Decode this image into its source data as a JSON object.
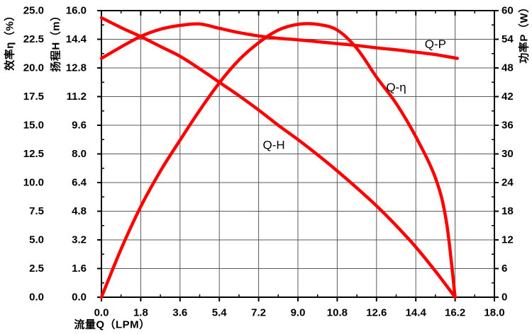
{
  "chart_data": {
    "type": "line",
    "title": "",
    "xlabel": "流量Q（LPM）",
    "x_axis": {
      "lim": [
        0,
        18
      ],
      "ticks": [
        "0.0",
        "1.8",
        "3.6",
        "5.4",
        "7.2",
        "9.0",
        "10.8",
        "12.6",
        "14.4",
        "16.2",
        "18.0"
      ]
    },
    "y_axes": {
      "efficiency": {
        "title": "效率η（%）",
        "lim": [
          0,
          25
        ],
        "ticks": [
          "0.0",
          "2.5",
          "5.0",
          "7.5",
          "10.0",
          "12.5",
          "15.0",
          "17.5",
          "20.0",
          "22.5",
          "25.0"
        ]
      },
      "head": {
        "title": "扬程H（m）",
        "lim": [
          0,
          16
        ],
        "ticks": [
          "0.0",
          "1.6",
          "3.2",
          "4.8",
          "6.4",
          "8.0",
          "9.6",
          "11.2",
          "12.8",
          "14.4",
          "16.0"
        ]
      },
      "power": {
        "title": "功率P（W）",
        "lim": [
          0,
          60
        ],
        "ticks": [
          "0",
          "6",
          "12",
          "18",
          "24",
          "30",
          "36",
          "42",
          "48",
          "54",
          "60"
        ]
      }
    },
    "grid": true,
    "legend_position": "inline-curve-labels",
    "colors": {
      "curve": "#ff0000",
      "grid": "#5a5a5a",
      "axis": "#000000",
      "background": "#ffffff",
      "text": "#000000"
    },
    "series": [
      {
        "id": "q-h",
        "label": "Q-H",
        "y_axis": "head",
        "label_at": [
          7.9,
          8.5
        ],
        "points": [
          [
            0,
            15.6
          ],
          [
            0.9,
            15.05
          ],
          [
            1.8,
            14.55
          ],
          [
            2.7,
            14.0
          ],
          [
            3.6,
            13.45
          ],
          [
            4.5,
            12.75
          ],
          [
            5.4,
            12.0
          ],
          [
            6.3,
            11.25
          ],
          [
            7.2,
            10.45
          ],
          [
            8.1,
            9.6
          ],
          [
            9.0,
            8.8
          ],
          [
            9.9,
            7.95
          ],
          [
            10.8,
            7.05
          ],
          [
            11.7,
            6.1
          ],
          [
            12.6,
            5.1
          ],
          [
            13.5,
            4.0
          ],
          [
            14.4,
            2.8
          ],
          [
            15.3,
            1.45
          ],
          [
            16.2,
            0
          ]
        ]
      },
      {
        "id": "q-eta",
        "label": "Q-η",
        "y_axis": "efficiency",
        "label_at": [
          13.5,
          18.3
        ],
        "points": [
          [
            0,
            0
          ],
          [
            0.9,
            4.2
          ],
          [
            1.8,
            7.9
          ],
          [
            2.7,
            11.0
          ],
          [
            3.6,
            13.7
          ],
          [
            4.5,
            16.3
          ],
          [
            5.4,
            18.7
          ],
          [
            6.3,
            20.7
          ],
          [
            7.2,
            22.2
          ],
          [
            8.1,
            23.3
          ],
          [
            9.0,
            23.8
          ],
          [
            9.9,
            23.8
          ],
          [
            10.8,
            23.3
          ],
          [
            11.7,
            21.7
          ],
          [
            12.6,
            19.2
          ],
          [
            13.5,
            16.9
          ],
          [
            14.4,
            14.0
          ],
          [
            15.3,
            10.4
          ],
          [
            15.8,
            6.6
          ],
          [
            16.2,
            0
          ]
        ]
      },
      {
        "id": "q-p",
        "label": "Q-P",
        "y_axis": "power",
        "label_at": [
          15.3,
          53.0
        ],
        "points": [
          [
            0,
            50.0
          ],
          [
            0.9,
            52.4
          ],
          [
            1.8,
            54.6
          ],
          [
            2.7,
            56.1
          ],
          [
            3.6,
            56.9
          ],
          [
            4.5,
            57.2
          ],
          [
            5.4,
            56.3
          ],
          [
            6.3,
            55.4
          ],
          [
            7.2,
            54.7
          ],
          [
            8.1,
            54.2
          ],
          [
            9.0,
            53.9
          ],
          [
            9.9,
            53.5
          ],
          [
            10.8,
            53.1
          ],
          [
            11.7,
            52.7
          ],
          [
            12.6,
            52.2
          ],
          [
            13.5,
            51.8
          ],
          [
            14.4,
            51.3
          ],
          [
            15.3,
            50.8
          ],
          [
            16.3,
            50.0
          ]
        ]
      }
    ]
  }
}
